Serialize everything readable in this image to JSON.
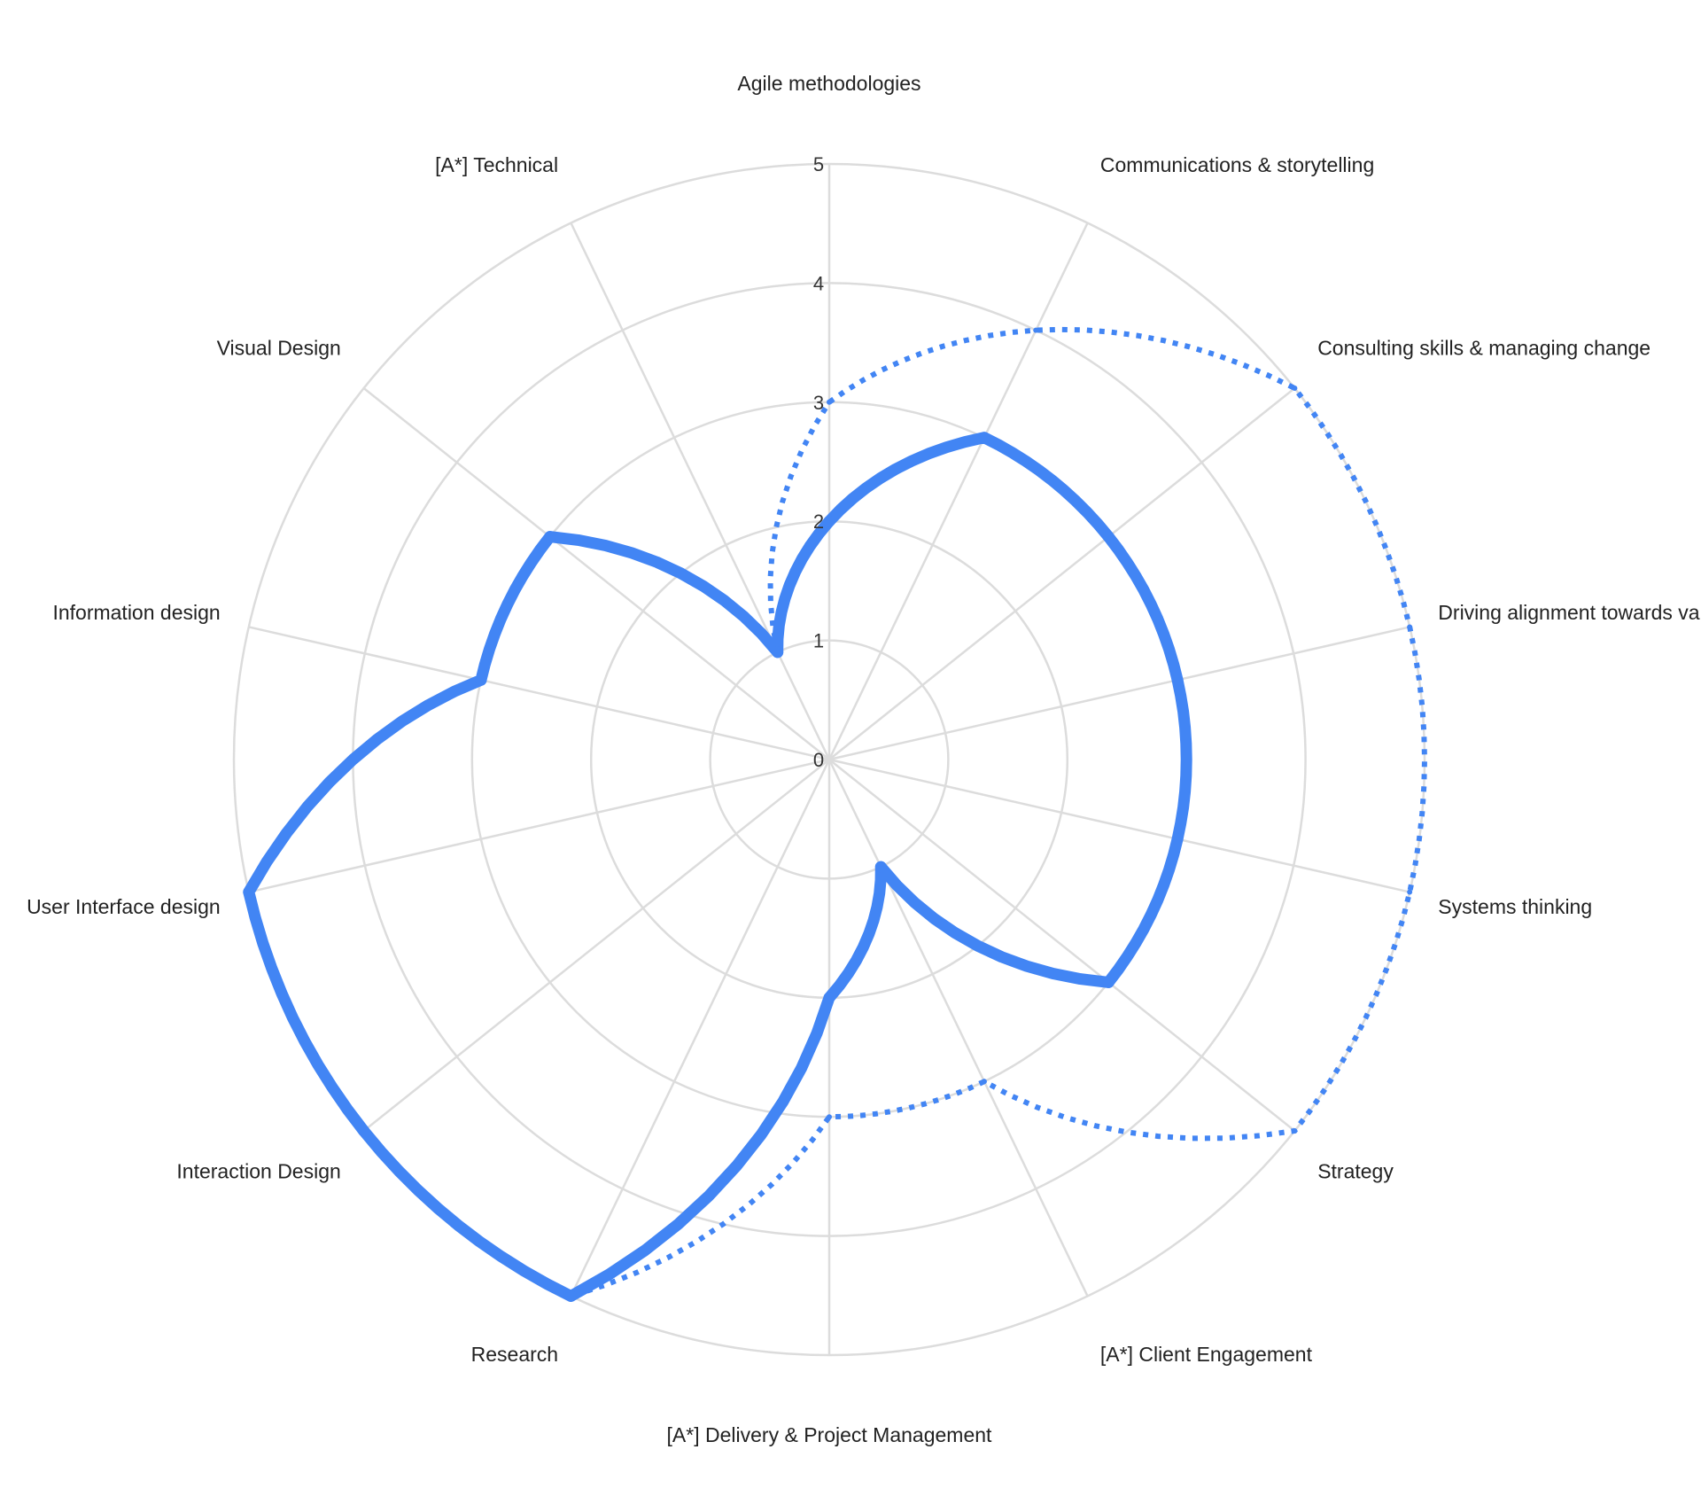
{
  "chart_data": {
    "type": "radar",
    "categories": [
      "Agile methodologies",
      "Communications & storytelling",
      "Consulting skills & managing change",
      "Driving alignment towards value",
      "Systems thinking",
      "Strategy",
      "[A*] Client Engagement",
      "[A*] Delivery & Project Management",
      "Research",
      "Interaction Design",
      "User Interface design",
      "Information design",
      "Visual Design",
      "[A*] Technical"
    ],
    "rlim": [
      0,
      5
    ],
    "ticks": [
      "0",
      "1",
      "2",
      "3",
      "4",
      "5"
    ],
    "grid": true,
    "series": [
      {
        "style": "solid",
        "color": "#4285f4",
        "values": [
          2,
          3,
          3,
          3,
          3,
          3,
          1,
          2,
          5,
          5,
          5,
          3,
          3,
          1
        ]
      },
      {
        "style": "dotted",
        "color": "#4285f4",
        "values": [
          3,
          4,
          5,
          5,
          5,
          5,
          3,
          3,
          5,
          5,
          5,
          3,
          3,
          1
        ]
      }
    ]
  }
}
